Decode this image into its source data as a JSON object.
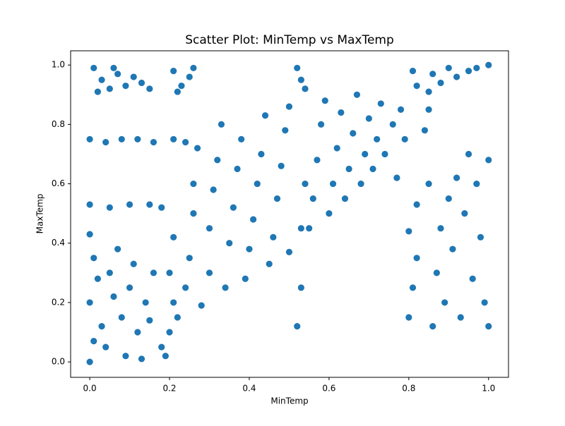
{
  "chart_data": {
    "type": "scatter",
    "title": "Scatter Plot: MinTemp vs MaxTemp",
    "xlabel": "MinTemp",
    "ylabel": "MaxTemp",
    "color": "#1f77b4",
    "xlim": [
      -0.048,
      1.05
    ],
    "ylim": [
      -0.052,
      1.048
    ],
    "xticks": [
      {
        "value": 0,
        "label": "0.0"
      },
      0.2,
      0.4,
      0.6,
      0.8,
      {
        "value": 1,
        "label": "1.0"
      }
    ],
    "yticks": [
      {
        "value": 0,
        "label": "0.0"
      },
      0.2,
      0.4,
      0.6,
      0.8,
      {
        "value": 1,
        "label": "1.0"
      }
    ],
    "x": [
      0.01,
      0.03,
      0.05,
      0.07,
      0.09,
      0.11,
      0.13,
      0.15,
      0.02,
      0.06,
      0.21,
      0.23,
      0.25,
      0.22,
      0.26,
      0.52,
      0.53,
      0.54,
      0.81,
      0.82,
      0.86,
      0.88,
      0.9,
      0.92,
      0.95,
      0.97,
      1.0,
      0.85,
      0.0,
      0.04,
      0.08,
      0.12,
      0.16,
      0.21,
      0.24,
      0.0,
      0.05,
      0.1,
      0.15,
      0.18,
      0.0,
      0.01,
      0.02,
      0.0,
      0.03,
      0.01,
      0.05,
      0.06,
      0.08,
      0.1,
      0.12,
      0.14,
      0.16,
      0.09,
      0.13,
      0.04,
      0.18,
      0.19,
      0.07,
      0.11,
      0.15,
      0.0,
      0.2,
      0.21,
      0.2,
      0.21,
      0.22,
      0.24,
      0.25,
      0.26,
      0.26,
      0.27,
      0.28,
      0.3,
      0.3,
      0.31,
      0.32,
      0.33,
      0.34,
      0.35,
      0.36,
      0.37,
      0.38,
      0.39,
      0.4,
      0.41,
      0.42,
      0.43,
      0.44,
      0.45,
      0.46,
      0.47,
      0.48,
      0.49,
      0.5,
      0.5,
      0.52,
      0.53,
      0.53,
      0.54,
      0.55,
      0.56,
      0.57,
      0.58,
      0.59,
      0.6,
      0.61,
      0.62,
      0.63,
      0.64,
      0.65,
      0.66,
      0.67,
      0.68,
      0.69,
      0.7,
      0.71,
      0.72,
      0.73,
      0.74,
      0.76,
      0.78,
      0.77,
      0.79,
      0.8,
      0.81,
      0.82,
      0.8,
      0.86,
      0.87,
      0.88,
      0.89,
      0.9,
      0.91,
      0.92,
      0.93,
      0.94,
      0.95,
      0.96,
      0.97,
      0.98,
      0.99,
      1.0,
      1.0,
      0.85,
      0.82,
      0.84,
      0.85
    ],
    "values": [
      0.99,
      0.95,
      0.92,
      0.97,
      0.93,
      0.96,
      0.94,
      0.92,
      0.91,
      0.99,
      0.98,
      0.93,
      0.96,
      0.91,
      0.99,
      0.99,
      0.95,
      0.92,
      0.98,
      0.93,
      0.97,
      0.94,
      0.99,
      0.96,
      0.98,
      0.99,
      1.0,
      0.91,
      0.75,
      0.74,
      0.75,
      0.75,
      0.74,
      0.75,
      0.74,
      0.53,
      0.52,
      0.53,
      0.53,
      0.52,
      0.43,
      0.35,
      0.28,
      0.2,
      0.12,
      0.07,
      0.3,
      0.22,
      0.15,
      0.25,
      0.1,
      0.2,
      0.3,
      0.02,
      0.01,
      0.05,
      0.05,
      0.02,
      0.38,
      0.33,
      0.14,
      0.0,
      0.1,
      0.2,
      0.3,
      0.42,
      0.15,
      0.25,
      0.35,
      0.5,
      0.6,
      0.72,
      0.19,
      0.3,
      0.45,
      0.58,
      0.68,
      0.8,
      0.25,
      0.4,
      0.52,
      0.65,
      0.75,
      0.28,
      0.38,
      0.48,
      0.6,
      0.7,
      0.83,
      0.33,
      0.42,
      0.55,
      0.66,
      0.78,
      0.37,
      0.86,
      0.12,
      0.25,
      0.45,
      0.6,
      0.45,
      0.55,
      0.68,
      0.8,
      0.88,
      0.5,
      0.6,
      0.72,
      0.84,
      0.55,
      0.65,
      0.77,
      0.9,
      0.6,
      0.7,
      0.82,
      0.65,
      0.75,
      0.87,
      0.7,
      0.8,
      0.85,
      0.62,
      0.75,
      0.15,
      0.25,
      0.35,
      0.44,
      0.12,
      0.3,
      0.45,
      0.2,
      0.55,
      0.38,
      0.62,
      0.15,
      0.5,
      0.7,
      0.28,
      0.6,
      0.42,
      0.2,
      0.68,
      0.12,
      0.6,
      0.53,
      0.78,
      0.85
    ]
  }
}
